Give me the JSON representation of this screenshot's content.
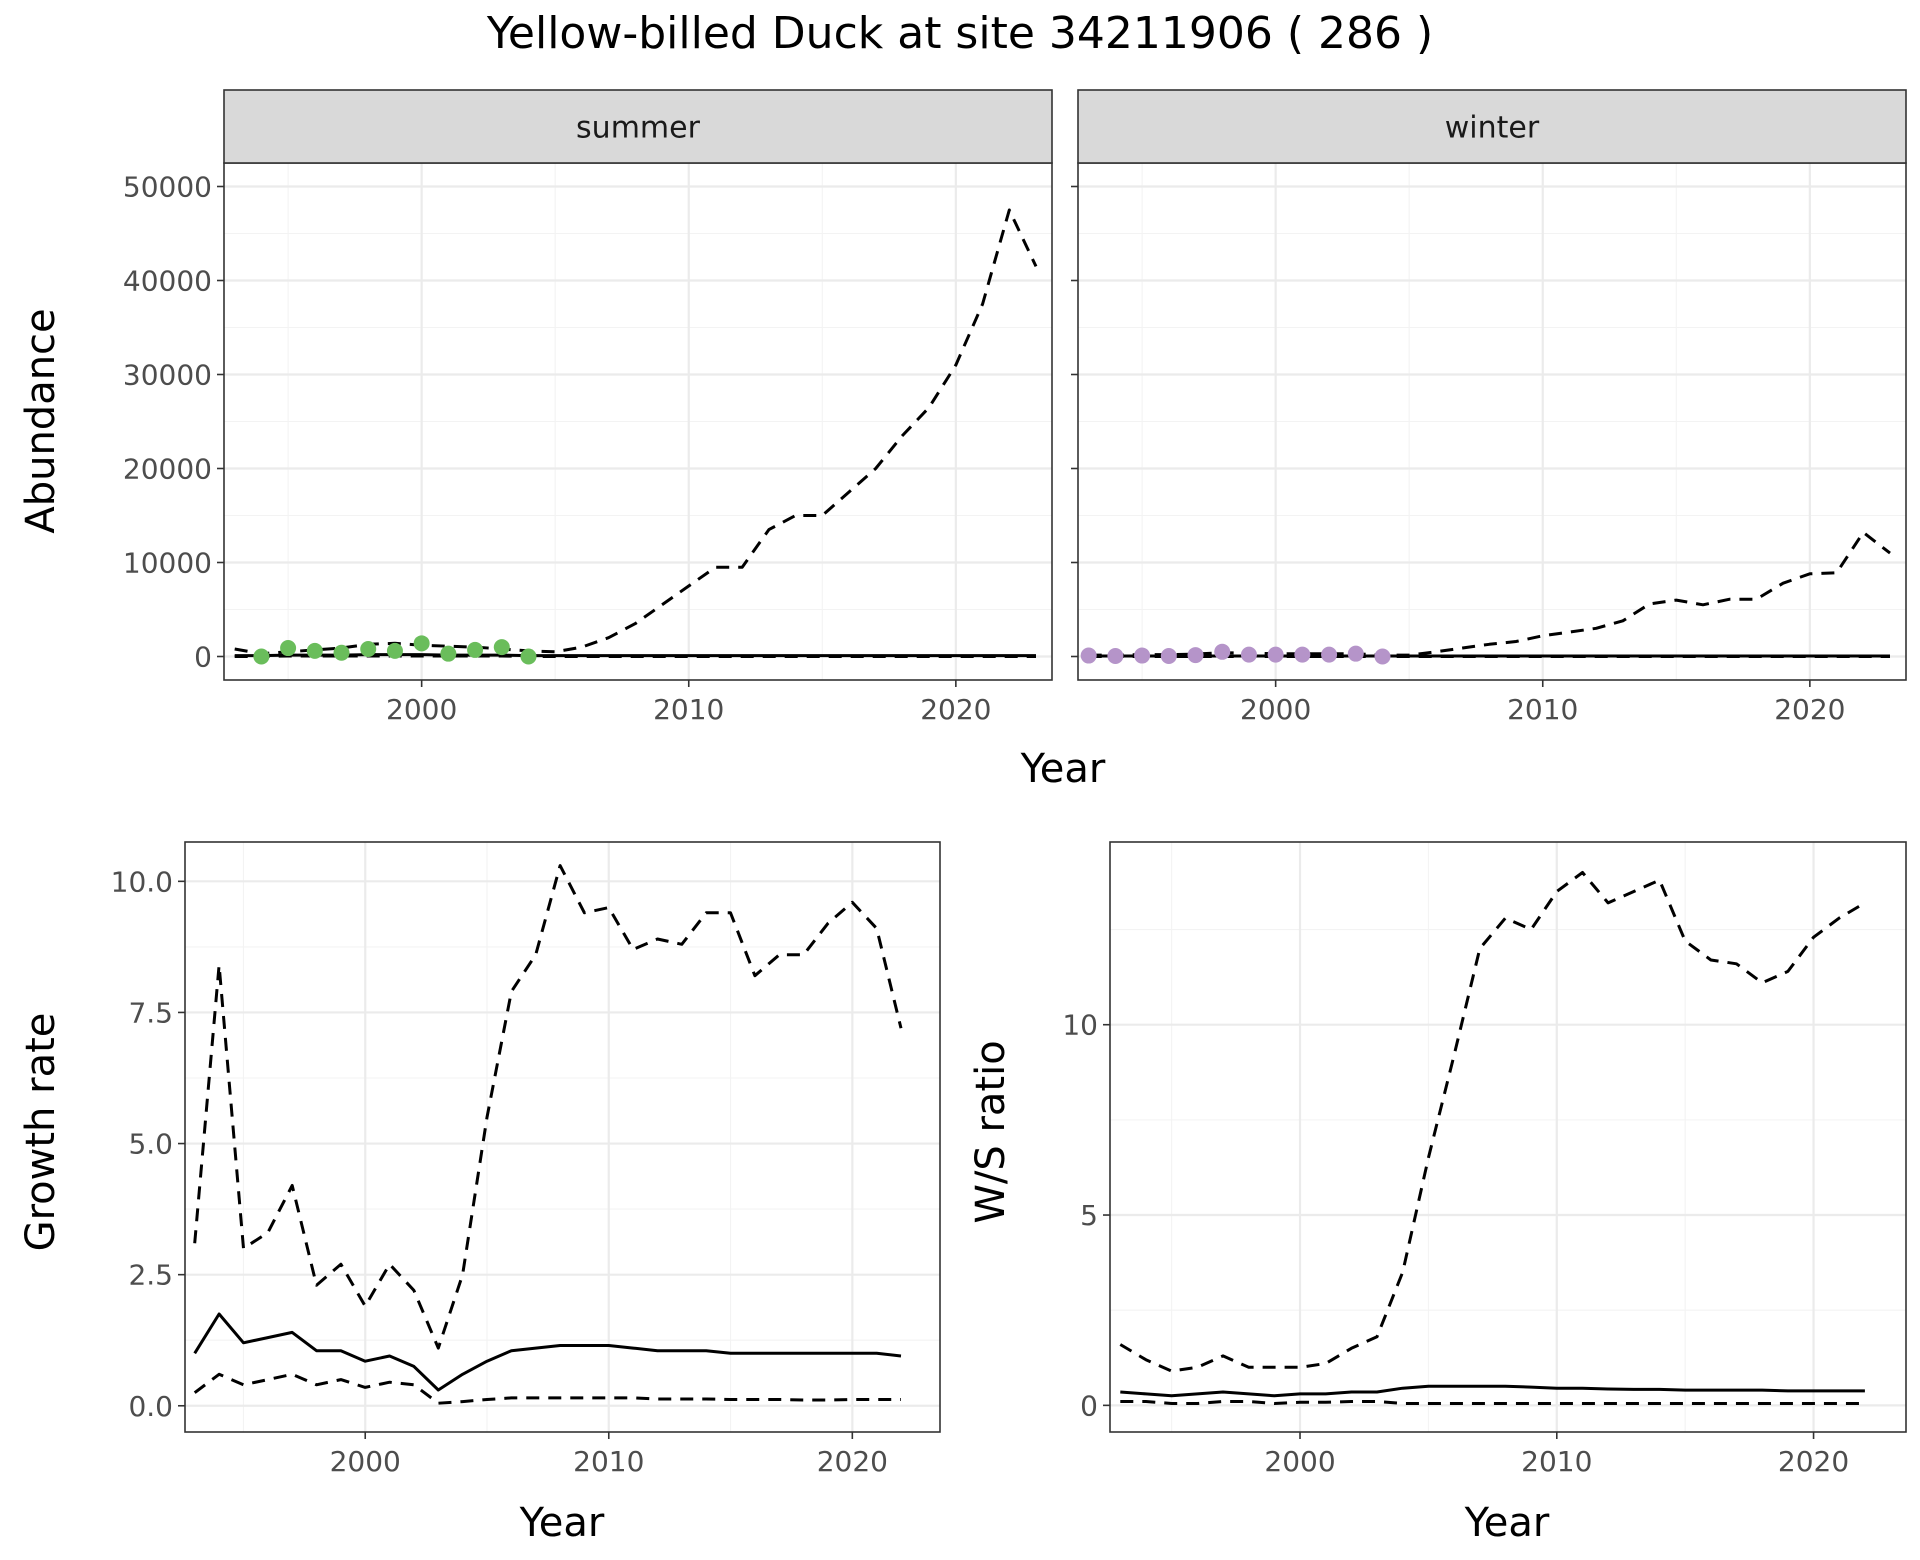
{
  "title": "Yellow-billed Duck at site 34211906 ( 286 )",
  "colors": {
    "summer_points": "#6abd5b",
    "winter_points": "#b594c9",
    "lines": "#000000"
  },
  "chart_data": [
    {
      "type": "line",
      "facet": "summer",
      "xlabel": "Year",
      "ylabel": "Abundance",
      "xlim": [
        1992.6,
        2023.6
      ],
      "ylim": [
        -2500,
        52500
      ],
      "xticks": [
        2000,
        2010,
        2020
      ],
      "yticks": [
        0,
        10000,
        20000,
        30000,
        40000,
        50000
      ],
      "grid": true,
      "series": [
        {
          "style": "solid",
          "x": [
            1993,
            1994,
            1995,
            1996,
            1997,
            1998,
            1999,
            2000,
            2001,
            2002,
            2003,
            2004,
            2005,
            2006,
            2007,
            2008,
            2009,
            2010,
            2011,
            2012,
            2013,
            2014,
            2015,
            2016,
            2017,
            2018,
            2019,
            2020,
            2021,
            2022,
            2023
          ],
          "values": [
            100,
            100,
            150,
            150,
            150,
            200,
            200,
            200,
            150,
            150,
            150,
            100,
            100,
            100,
            100,
            100,
            100,
            100,
            100,
            100,
            100,
            100,
            100,
            100,
            100,
            100,
            100,
            100,
            100,
            100,
            100
          ]
        },
        {
          "style": "dashed",
          "x": [
            1993,
            1994,
            1995,
            1996,
            1997,
            1998,
            1999,
            2000,
            2001,
            2002,
            2003,
            2004,
            2005,
            2006,
            2007,
            2008,
            2009,
            2010,
            2011,
            2012,
            2013,
            2014,
            2015,
            2016,
            2017,
            2018,
            2019,
            2020,
            2021,
            2022,
            2023
          ],
          "values": [
            800,
            300,
            500,
            700,
            900,
            1300,
            1400,
            1200,
            1100,
            1000,
            800,
            600,
            500,
            1000,
            2000,
            3500,
            5500,
            7500,
            9500,
            9500,
            13500,
            15000,
            15000,
            17500,
            20000,
            23500,
            26500,
            31000,
            37500,
            47500,
            41500
          ]
        },
        {
          "style": "dashed",
          "x": [
            1993,
            1994,
            1995,
            1996,
            1997,
            1998,
            1999,
            2000,
            2001,
            2002,
            2003,
            2004,
            2005,
            2006,
            2007,
            2008,
            2009,
            2010,
            2011,
            2012,
            2013,
            2014,
            2015,
            2016,
            2017,
            2018,
            2019,
            2020,
            2021,
            2022,
            2023
          ],
          "values": [
            0,
            0,
            50,
            50,
            50,
            50,
            50,
            50,
            50,
            50,
            50,
            0,
            0,
            0,
            0,
            0,
            0,
            0,
            0,
            0,
            0,
            0,
            0,
            0,
            0,
            0,
            0,
            0,
            0,
            0,
            0
          ]
        }
      ],
      "points": {
        "x": [
          1994,
          1995,
          1996,
          1997,
          1998,
          1999,
          2000,
          2001,
          2002,
          2003,
          2004
        ],
        "values": [
          0,
          900,
          600,
          400,
          800,
          600,
          1400,
          300,
          700,
          1000,
          0
        ]
      }
    },
    {
      "type": "line",
      "facet": "winter",
      "xlabel": "Year",
      "ylabel": "Abundance",
      "xlim": [
        1992.6,
        2023.6
      ],
      "ylim": [
        -2500,
        52500
      ],
      "xticks": [
        2000,
        2010,
        2020
      ],
      "yticks": [
        0,
        10000,
        20000,
        30000,
        40000,
        50000
      ],
      "grid": true,
      "series": [
        {
          "style": "solid",
          "x": [
            1993,
            1994,
            1995,
            1996,
            1997,
            1998,
            1999,
            2000,
            2001,
            2002,
            2003,
            2004,
            2005,
            2006,
            2007,
            2008,
            2009,
            2010,
            2011,
            2012,
            2013,
            2014,
            2015,
            2016,
            2017,
            2018,
            2019,
            2020,
            2021,
            2022,
            2023
          ],
          "values": [
            50,
            50,
            50,
            50,
            50,
            50,
            50,
            50,
            50,
            50,
            50,
            50,
            50,
            50,
            50,
            50,
            50,
            50,
            50,
            50,
            50,
            50,
            50,
            50,
            50,
            50,
            50,
            50,
            50,
            50,
            50
          ]
        },
        {
          "style": "dashed",
          "x": [
            1993,
            1994,
            1995,
            1996,
            1997,
            1998,
            1999,
            2000,
            2001,
            2002,
            2003,
            2004,
            2005,
            2006,
            2007,
            2008,
            2009,
            2010,
            2011,
            2012,
            2013,
            2014,
            2015,
            2016,
            2017,
            2018,
            2019,
            2020,
            2021,
            2022,
            2023
          ],
          "values": [
            150,
            150,
            200,
            200,
            250,
            400,
            350,
            300,
            300,
            300,
            300,
            150,
            150,
            500,
            900,
            1300,
            1600,
            2200,
            2600,
            3000,
            3800,
            5600,
            6000,
            5500,
            6100,
            6100,
            7800,
            8800,
            8900,
            13200,
            11000
          ]
        },
        {
          "style": "dashed",
          "x": [
            1993,
            1994,
            1995,
            1996,
            1997,
            1998,
            1999,
            2000,
            2001,
            2002,
            2003,
            2004,
            2005,
            2006,
            2007,
            2008,
            2009,
            2010,
            2011,
            2012,
            2013,
            2014,
            2015,
            2016,
            2017,
            2018,
            2019,
            2020,
            2021,
            2022,
            2023
          ],
          "values": [
            0,
            0,
            0,
            0,
            0,
            0,
            0,
            0,
            0,
            0,
            0,
            0,
            0,
            0,
            0,
            0,
            0,
            0,
            0,
            0,
            0,
            0,
            0,
            0,
            0,
            0,
            0,
            0,
            0,
            0,
            0
          ]
        }
      ],
      "points": {
        "x": [
          1993,
          1994,
          1995,
          1996,
          1997,
          1998,
          1999,
          2000,
          2001,
          2002,
          2003,
          2004
        ],
        "values": [
          100,
          50,
          100,
          50,
          150,
          500,
          200,
          200,
          200,
          200,
          300,
          0
        ]
      }
    },
    {
      "type": "line",
      "xlabel": "Year",
      "ylabel": "Growth rate",
      "xlim": [
        1992.6,
        2023.6
      ],
      "ylim": [
        -0.5,
        10.75
      ],
      "xticks": [
        2000,
        2010,
        2020
      ],
      "yticks": [
        0.0,
        2.5,
        5.0,
        7.5,
        10.0
      ],
      "ytick_labels": [
        "0.0",
        "2.5",
        "5.0",
        "7.5",
        "10.0"
      ],
      "grid": true,
      "series": [
        {
          "style": "solid",
          "x": [
            1993,
            1994,
            1995,
            1996,
            1997,
            1998,
            1999,
            2000,
            2001,
            2002,
            2003,
            2004,
            2005,
            2006,
            2007,
            2008,
            2009,
            2010,
            2011,
            2012,
            2013,
            2014,
            2015,
            2016,
            2017,
            2018,
            2019,
            2020,
            2021,
            2022
          ],
          "values": [
            1.0,
            1.75,
            1.2,
            1.3,
            1.4,
            1.05,
            1.05,
            0.85,
            0.95,
            0.75,
            0.3,
            0.6,
            0.85,
            1.05,
            1.1,
            1.15,
            1.15,
            1.15,
            1.1,
            1.05,
            1.05,
            1.05,
            1.0,
            1.0,
            1.0,
            1.0,
            1.0,
            1.0,
            1.0,
            0.95
          ]
        },
        {
          "style": "dashed",
          "x": [
            1993,
            1994,
            1995,
            1996,
            1997,
            1998,
            1999,
            2000,
            2001,
            2002,
            2003,
            2004,
            2005,
            2006,
            2007,
            2008,
            2009,
            2010,
            2011,
            2012,
            2013,
            2014,
            2015,
            2016,
            2017,
            2018,
            2019,
            2020,
            2021,
            2022
          ],
          "values": [
            3.1,
            8.4,
            3.0,
            3.3,
            4.2,
            2.3,
            2.7,
            1.9,
            2.7,
            2.2,
            1.1,
            2.5,
            5.5,
            7.9,
            8.6,
            10.3,
            9.4,
            9.5,
            8.7,
            8.9,
            8.8,
            9.4,
            9.4,
            8.2,
            8.6,
            8.6,
            9.2,
            9.6,
            9.1,
            7.2
          ]
        },
        {
          "style": "dashed",
          "x": [
            1993,
            1994,
            1995,
            1996,
            1997,
            1998,
            1999,
            2000,
            2001,
            2002,
            2003,
            2004,
            2005,
            2006,
            2007,
            2008,
            2009,
            2010,
            2011,
            2012,
            2013,
            2014,
            2015,
            2016,
            2017,
            2018,
            2019,
            2020,
            2021,
            2022
          ],
          "values": [
            0.25,
            0.6,
            0.4,
            0.5,
            0.6,
            0.4,
            0.5,
            0.35,
            0.45,
            0.4,
            0.05,
            0.08,
            0.12,
            0.15,
            0.15,
            0.15,
            0.15,
            0.15,
            0.15,
            0.13,
            0.13,
            0.13,
            0.12,
            0.12,
            0.12,
            0.11,
            0.11,
            0.12,
            0.12,
            0.12
          ]
        }
      ]
    },
    {
      "type": "line",
      "xlabel": "Year",
      "ylabel": "W/S ratio",
      "xlim": [
        1992.6,
        2023.6
      ],
      "ylim": [
        -0.7,
        14.8
      ],
      "xticks": [
        2000,
        2010,
        2020
      ],
      "yticks": [
        0,
        5,
        10
      ],
      "grid": true,
      "series": [
        {
          "style": "solid",
          "x": [
            1993,
            1994,
            1995,
            1996,
            1997,
            1998,
            1999,
            2000,
            2001,
            2002,
            2003,
            2004,
            2005,
            2006,
            2007,
            2008,
            2009,
            2010,
            2011,
            2012,
            2013,
            2014,
            2015,
            2016,
            2017,
            2018,
            2019,
            2020,
            2021,
            2022
          ],
          "values": [
            0.35,
            0.3,
            0.25,
            0.3,
            0.35,
            0.3,
            0.25,
            0.3,
            0.3,
            0.35,
            0.35,
            0.45,
            0.5,
            0.5,
            0.5,
            0.5,
            0.48,
            0.45,
            0.45,
            0.43,
            0.42,
            0.42,
            0.4,
            0.4,
            0.4,
            0.4,
            0.38,
            0.38,
            0.38,
            0.38
          ]
        },
        {
          "style": "dashed",
          "x": [
            1993,
            1994,
            1995,
            1996,
            1997,
            1998,
            1999,
            2000,
            2001,
            2002,
            2003,
            2004,
            2005,
            2006,
            2007,
            2008,
            2009,
            2010,
            2011,
            2012,
            2013,
            2014,
            2015,
            2016,
            2017,
            2018,
            2019,
            2020,
            2021,
            2022
          ],
          "values": [
            1.6,
            1.2,
            0.9,
            1.0,
            1.3,
            1.0,
            1.0,
            1.0,
            1.1,
            1.5,
            1.8,
            3.5,
            6.5,
            9.2,
            12.0,
            12.8,
            12.5,
            13.5,
            14.0,
            13.2,
            13.5,
            13.8,
            12.2,
            11.7,
            11.6,
            11.1,
            11.4,
            12.3,
            12.8,
            13.2
          ]
        },
        {
          "style": "dashed",
          "x": [
            1993,
            1994,
            1995,
            1996,
            1997,
            1998,
            1999,
            2000,
            2001,
            2002,
            2003,
            2004,
            2005,
            2006,
            2007,
            2008,
            2009,
            2010,
            2011,
            2012,
            2013,
            2014,
            2015,
            2016,
            2017,
            2018,
            2019,
            2020,
            2021,
            2022
          ],
          "values": [
            0.1,
            0.1,
            0.05,
            0.05,
            0.1,
            0.1,
            0.05,
            0.08,
            0.08,
            0.1,
            0.1,
            0.05,
            0.05,
            0.05,
            0.05,
            0.05,
            0.05,
            0.05,
            0.05,
            0.05,
            0.05,
            0.05,
            0.05,
            0.05,
            0.05,
            0.05,
            0.05,
            0.05,
            0.05,
            0.05
          ]
        }
      ]
    }
  ]
}
